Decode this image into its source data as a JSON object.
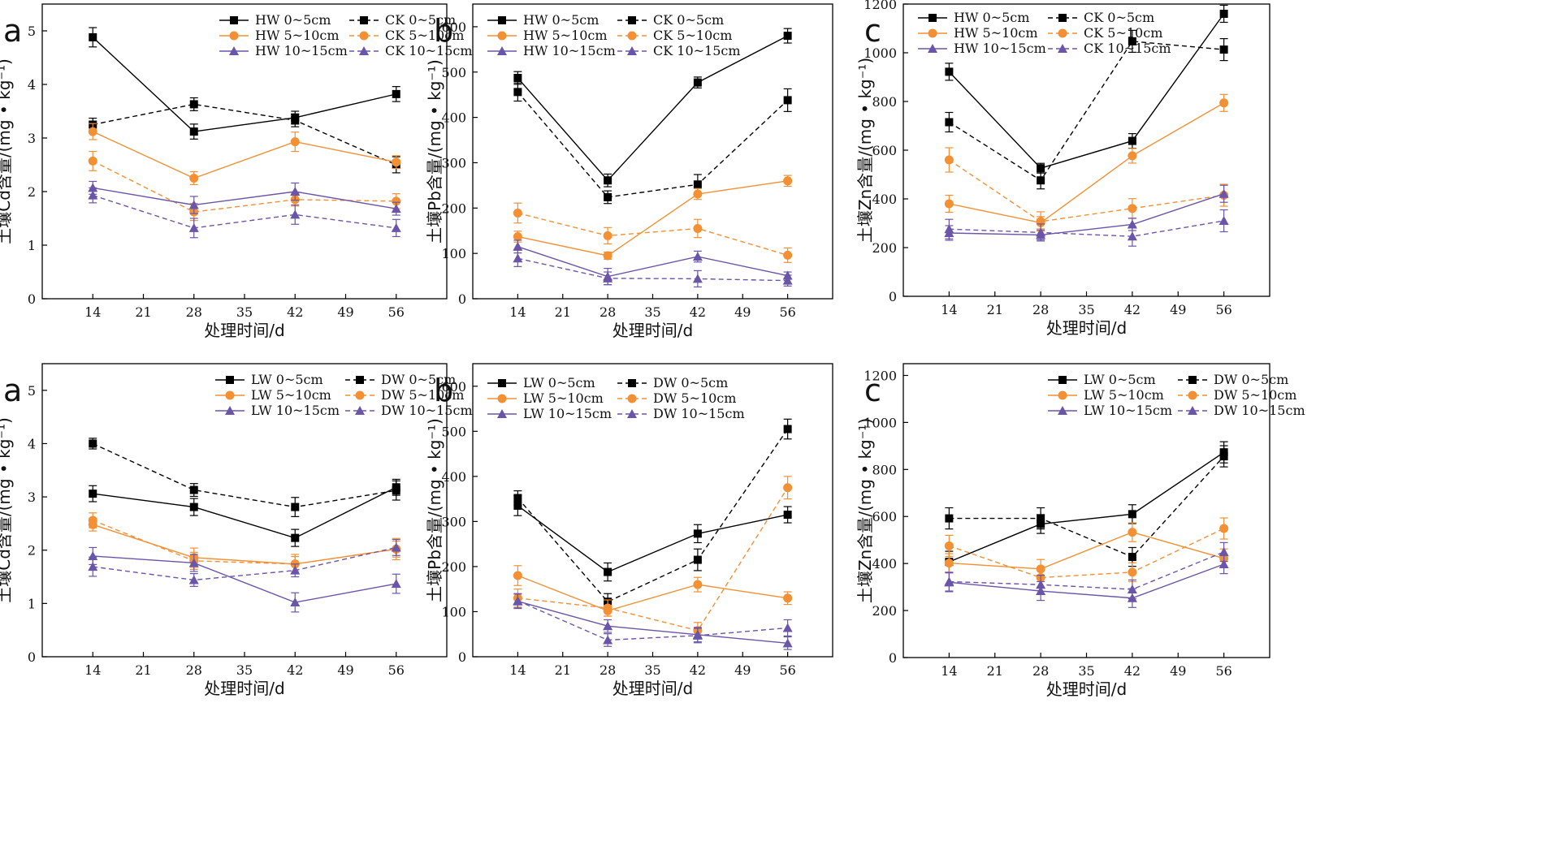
{
  "figure": {
    "chart_data": [
      {
        "type": "line",
        "letter": "a",
        "xlabel": "处理时间/d",
        "ylabel": "土壤Cd含量/(mg • kg⁻¹)",
        "x": [
          14,
          28,
          42,
          56
        ],
        "xticks": [
          14,
          21,
          28,
          35,
          42,
          49,
          56
        ],
        "xlim": [
          7,
          63
        ],
        "ylim": [
          0,
          5.5
        ],
        "yticks": [
          0,
          1,
          2,
          3,
          4,
          5
        ],
        "legend_position": "top-right",
        "series": [
          {
            "name": "HW 0~5cm",
            "color": "#000000",
            "dash": false,
            "marker": "square",
            "values": [
              4.88,
              3.12,
              3.38,
              3.82
            ],
            "err": [
              0.18,
              0.14,
              0.12,
              0.14
            ]
          },
          {
            "name": "CK 0~5cm",
            "color": "#000000",
            "dash": true,
            "marker": "square",
            "values": [
              3.25,
              3.63,
              3.33,
              2.5
            ],
            "err": [
              0.12,
              0.12,
              0.12,
              0.15
            ]
          },
          {
            "name": "HW 5~10cm",
            "color": "#f39033",
            "dash": false,
            "marker": "circle",
            "values": [
              3.12,
              2.25,
              2.93,
              2.55
            ],
            "err": [
              0.15,
              0.12,
              0.18,
              0.12
            ]
          },
          {
            "name": "CK 5~10cm",
            "color": "#f39033",
            "dash": true,
            "marker": "circle",
            "values": [
              2.57,
              1.62,
              1.85,
              1.82
            ],
            "err": [
              0.18,
              0.16,
              0.12,
              0.14
            ]
          },
          {
            "name": "HW 10~15cm",
            "color": "#6a55a8",
            "dash": false,
            "marker": "triangle",
            "values": [
              2.07,
              1.75,
              2.0,
              1.68
            ],
            "err": [
              0.12,
              0.16,
              0.16,
              0.12
            ]
          },
          {
            "name": "CK 10~15cm",
            "color": "#6a55a8",
            "dash": true,
            "marker": "triangle",
            "values": [
              1.93,
              1.32,
              1.57,
              1.32
            ],
            "err": [
              0.14,
              0.18,
              0.18,
              0.16
            ]
          }
        ]
      },
      {
        "type": "line",
        "letter": "b",
        "xlabel": "处理时间/d",
        "ylabel": "土壤Pb含量/(mg • kg⁻¹)",
        "x": [
          14,
          28,
          42,
          56
        ],
        "xticks": [
          14,
          21,
          28,
          35,
          42,
          49,
          56
        ],
        "xlim": [
          7,
          63
        ],
        "ylim": [
          0,
          650
        ],
        "yticks": [
          0,
          100,
          200,
          300,
          400,
          500,
          600
        ],
        "legend_position": "top-left",
        "series": [
          {
            "name": "HW 0~5cm",
            "color": "#000000",
            "dash": false,
            "marker": "square",
            "values": [
              487,
              261,
              477,
              580
            ],
            "err": [
              14,
              14,
              12,
              16
            ]
          },
          {
            "name": "CK 0~5cm",
            "color": "#000000",
            "dash": true,
            "marker": "square",
            "values": [
              456,
              224,
              252,
              438
            ],
            "err": [
              20,
              14,
              22,
              25
            ]
          },
          {
            "name": "HW 5~10cm",
            "color": "#f39033",
            "dash": false,
            "marker": "circle",
            "values": [
              137,
              95,
              231,
              260
            ],
            "err": [
              12,
              8,
              12,
              12
            ]
          },
          {
            "name": "CK 5~10cm",
            "color": "#f39033",
            "dash": true,
            "marker": "circle",
            "values": [
              189,
              139,
              155,
              96
            ],
            "err": [
              22,
              18,
              20,
              16
            ]
          },
          {
            "name": "HW 10~15cm",
            "color": "#6a55a8",
            "dash": false,
            "marker": "triangle",
            "values": [
              115,
              49,
              93,
              51
            ],
            "err": [
              14,
              18,
              12,
              8
            ]
          },
          {
            "name": "CK 10~15cm",
            "color": "#6a55a8",
            "dash": true,
            "marker": "triangle",
            "values": [
              89,
              45,
              44,
              40
            ],
            "err": [
              18,
              14,
              18,
              12
            ]
          }
        ]
      },
      {
        "type": "line",
        "letter": "c",
        "xlabel": "处理时间/d",
        "ylabel": "土壤Zn含量/(mg • kg⁻¹)",
        "x": [
          14,
          28,
          42,
          56
        ],
        "xticks": [
          14,
          21,
          28,
          35,
          42,
          49,
          56
        ],
        "xlim": [
          7,
          63
        ],
        "ylim": [
          0,
          1200
        ],
        "yticks": [
          0,
          200,
          400,
          600,
          800,
          1000,
          1200
        ],
        "legend_position": "top-left",
        "series": [
          {
            "name": "HW 0~5cm",
            "color": "#000000",
            "dash": false,
            "marker": "square",
            "values": [
              922,
              526,
              638,
              1160
            ],
            "err": [
              35,
              20,
              30,
              35
            ]
          },
          {
            "name": "CK 0~5cm",
            "color": "#000000",
            "dash": true,
            "marker": "square",
            "values": [
              715,
              476,
              1047,
              1013
            ],
            "err": [
              40,
              35,
              45,
              45
            ]
          },
          {
            "name": "HW 5~10cm",
            "color": "#f39033",
            "dash": false,
            "marker": "circle",
            "values": [
              380,
              302,
              577,
              794
            ],
            "err": [
              35,
              25,
              30,
              35
            ]
          },
          {
            "name": "CK 5~10cm",
            "color": "#f39033",
            "dash": true,
            "marker": "circle",
            "values": [
              560,
              307,
              361,
              415
            ],
            "err": [
              50,
              40,
              40,
              45
            ]
          },
          {
            "name": "HW 10~15cm",
            "color": "#6a55a8",
            "dash": false,
            "marker": "triangle",
            "values": [
              260,
              252,
              295,
              421
            ],
            "err": [
              30,
              20,
              25,
              35
            ]
          },
          {
            "name": "CK 10~15cm",
            "color": "#6a55a8",
            "dash": true,
            "marker": "triangle",
            "values": [
              276,
              262,
              246,
              310
            ],
            "err": [
              40,
              35,
              40,
              45
            ]
          }
        ]
      },
      {
        "type": "line",
        "letter": "a",
        "xlabel": "处理时间/d",
        "ylabel": "土壤Cd含量/(mg • kg⁻¹)",
        "x": [
          14,
          28,
          42,
          56
        ],
        "xticks": [
          14,
          21,
          28,
          35,
          42,
          49,
          56
        ],
        "xlim": [
          7,
          63
        ],
        "ylim": [
          0,
          5.5
        ],
        "yticks": [
          0,
          1,
          2,
          3,
          4,
          5
        ],
        "legend_position": "top-right",
        "series": [
          {
            "name": "LW 0~5cm",
            "color": "#000000",
            "dash": false,
            "marker": "square",
            "values": [
              3.06,
              2.81,
              2.23,
              3.18
            ],
            "err": [
              0.15,
              0.16,
              0.16,
              0.15
            ]
          },
          {
            "name": "DW 0~5cm",
            "color": "#000000",
            "dash": true,
            "marker": "square",
            "values": [
              4.0,
              3.13,
              2.81,
              3.12
            ],
            "err": [
              0.1,
              0.12,
              0.18,
              0.18
            ]
          },
          {
            "name": "LW 5~10cm",
            "color": "#f39033",
            "dash": false,
            "marker": "circle",
            "values": [
              2.48,
              1.86,
              1.74,
              2.02
            ],
            "err": [
              0.12,
              0.18,
              0.14,
              0.15
            ]
          },
          {
            "name": "DW 5~10cm",
            "color": "#f39033",
            "dash": true,
            "marker": "circle",
            "values": [
              2.56,
              1.8,
              1.74,
              2.02
            ],
            "err": [
              0.14,
              0.16,
              0.18,
              0.2
            ]
          },
          {
            "name": "LW 10~15cm",
            "color": "#6a55a8",
            "dash": false,
            "marker": "triangle",
            "values": [
              1.89,
              1.76,
              1.02,
              1.37
            ],
            "err": [
              0.16,
              0.16,
              0.18,
              0.18
            ]
          },
          {
            "name": "DW 10~15cm",
            "color": "#6a55a8",
            "dash": true,
            "marker": "triangle",
            "values": [
              1.69,
              1.44,
              1.62,
              2.05
            ],
            "err": [
              0.18,
              0.12,
              0.12,
              0.15
            ]
          }
        ]
      },
      {
        "type": "line",
        "letter": "b",
        "xlabel": "处理时间/d",
        "ylabel": "土壤Pb含量/(mg • kg⁻¹)",
        "x": [
          14,
          28,
          42,
          56
        ],
        "xticks": [
          14,
          21,
          28,
          35,
          42,
          49,
          56
        ],
        "xlim": [
          7,
          63
        ],
        "ylim": [
          0,
          650
        ],
        "yticks": [
          0,
          100,
          200,
          300,
          400,
          500,
          600
        ],
        "legend_position": "top-left",
        "series": [
          {
            "name": "LW 0~5cm",
            "color": "#000000",
            "dash": false,
            "marker": "square",
            "values": [
              335,
              188,
              273,
              315
            ],
            "err": [
              22,
              20,
              20,
              18
            ]
          },
          {
            "name": "DW 0~5cm",
            "color": "#000000",
            "dash": true,
            "marker": "square",
            "values": [
              352,
              122,
              215,
              505
            ],
            "err": [
              16,
              18,
              24,
              22
            ]
          },
          {
            "name": "LW 5~10cm",
            "color": "#f39033",
            "dash": false,
            "marker": "circle",
            "values": [
              180,
              102,
              160,
              130
            ],
            "err": [
              22,
              12,
              16,
              14
            ]
          },
          {
            "name": "DW 5~10cm",
            "color": "#f39033",
            "dash": true,
            "marker": "circle",
            "values": [
              130,
              108,
              58,
              375
            ],
            "err": [
              20,
              18,
              18,
              25
            ]
          },
          {
            "name": "LW 10~15cm",
            "color": "#6a55a8",
            "dash": false,
            "marker": "triangle",
            "values": [
              123,
              68,
              49,
              30
            ],
            "err": [
              16,
              14,
              16,
              14
            ]
          },
          {
            "name": "DW 10~15cm",
            "color": "#6a55a8",
            "dash": true,
            "marker": "triangle",
            "values": [
              124,
              37,
              47,
              64
            ],
            "err": [
              16,
              14,
              16,
              18
            ]
          }
        ]
      },
      {
        "type": "line",
        "letter": "c",
        "xlabel": "处理时间/d",
        "ylabel": "土壤Zn含量/(mg • kg⁻¹)",
        "x": [
          14,
          28,
          42,
          56
        ],
        "xticks": [
          14,
          21,
          28,
          35,
          42,
          49,
          56
        ],
        "xlim": [
          7,
          63
        ],
        "ylim": [
          0,
          1250
        ],
        "yticks": [
          0,
          200,
          400,
          600,
          800,
          1000,
          1200
        ],
        "legend_position": "top-left",
        "series": [
          {
            "name": "LW 0~5cm",
            "color": "#000000",
            "dash": false,
            "marker": "square",
            "values": [
              407,
              568,
              610,
              873
            ],
            "err": [
              45,
              40,
              40,
              45
            ]
          },
          {
            "name": "DW 0~5cm",
            "color": "#000000",
            "dash": true,
            "marker": "square",
            "values": [
              592,
              592,
              428,
              856
            ],
            "err": [
              45,
              45,
              40,
              45
            ]
          },
          {
            "name": "LW 5~10cm",
            "color": "#f39033",
            "dash": false,
            "marker": "circle",
            "values": [
              402,
              377,
              533,
              422
            ],
            "err": [
              40,
              40,
              40,
              40
            ]
          },
          {
            "name": "DW 5~10cm",
            "color": "#f39033",
            "dash": true,
            "marker": "circle",
            "values": [
              475,
              340,
              363,
              549
            ],
            "err": [
              45,
              40,
              40,
              45
            ]
          },
          {
            "name": "LW 10~15cm",
            "color": "#6a55a8",
            "dash": false,
            "marker": "triangle",
            "values": [
              320,
              283,
              253,
              397
            ],
            "err": [
              40,
              40,
              40,
              40
            ]
          },
          {
            "name": "DW 10~15cm",
            "color": "#6a55a8",
            "dash": true,
            "marker": "triangle",
            "values": [
              323,
              310,
              290,
              449
            ],
            "err": [
              40,
              40,
              40,
              40
            ]
          }
        ]
      }
    ]
  }
}
